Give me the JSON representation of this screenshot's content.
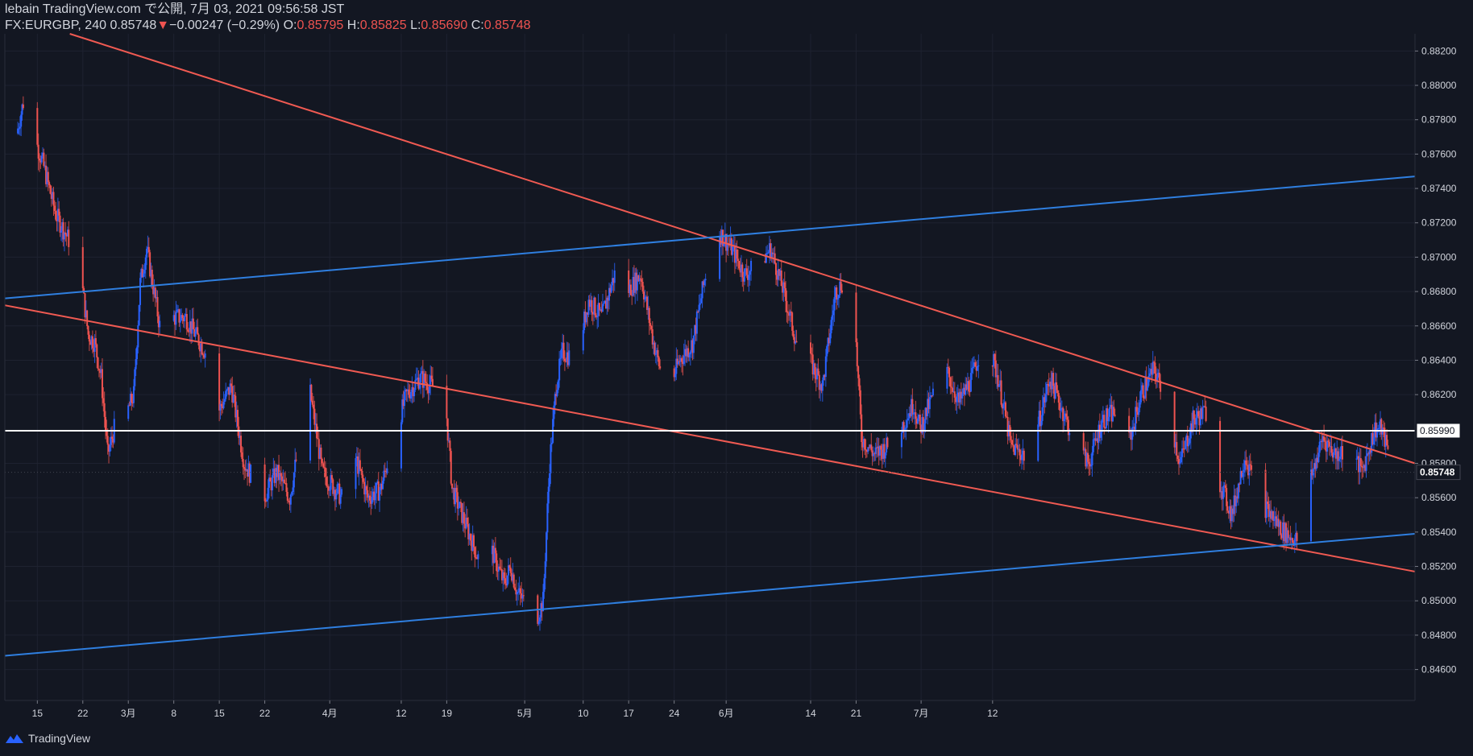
{
  "header": {
    "publisher": "lebain TradingView.com で公開, 7月 03, 2021 09:56:58 JST",
    "symbol": "FX:EURGBP, 240",
    "last": "0.85748",
    "arrow": "▼",
    "change": "−0.00247 (−0.29%)",
    "o_label": "O:",
    "o_value": "0.85795",
    "h_label": "H:",
    "h_value": "0.85825",
    "l_label": "L:",
    "l_value": "0.85690",
    "c_label": "C:",
    "c_value": "0.85748"
  },
  "footer": {
    "brand": "TradingView",
    "logo_icon": "tradingview-logo-icon"
  },
  "colors": {
    "bg": "#131722",
    "up": "#2962ff",
    "down": "#ef5350",
    "trend_red": "#f05a52",
    "trend_blue": "#2f7fe0",
    "grid": "#1e2230",
    "hline": "#ffffff"
  },
  "chart_data": {
    "type": "candlestick",
    "symbol": "FX:EURGBP",
    "timeframe": "240",
    "ylim": [
      0.8442,
      0.883
    ],
    "y_ticks": [
      "0.88200",
      "0.88000",
      "0.87800",
      "0.87600",
      "0.87400",
      "0.87200",
      "0.87000",
      "0.86800",
      "0.86600",
      "0.86400",
      "0.86200",
      "0.85800",
      "0.85600",
      "0.85400",
      "0.85200",
      "0.85000",
      "0.84800",
      "0.84600"
    ],
    "x_ticks": [
      "15",
      "22",
      "3月",
      "8",
      "15",
      "22",
      "4月",
      "12",
      "19",
      "5月",
      "10",
      "17",
      "24",
      "6月",
      "14",
      "21",
      "7月",
      "12"
    ],
    "x_tick_dates": [
      "2021-02-15",
      "2021-02-22",
      "2021-03-01",
      "2021-03-08",
      "2021-03-15",
      "2021-03-22",
      "2021-04-01",
      "2021-04-12",
      "2021-04-19",
      "2021-05-01",
      "2021-05-10",
      "2021-05-17",
      "2021-05-24",
      "2021-06-01",
      "2021-06-14",
      "2021-06-21",
      "2021-07-01",
      "2021-07-12"
    ],
    "price_path": [
      [
        "2021-02-12",
        0.8772
      ],
      [
        "2021-02-13",
        0.879
      ],
      [
        "2021-02-16",
        0.8755
      ],
      [
        "2021-02-18",
        0.8725
      ],
      [
        "2021-02-20",
        0.871
      ],
      [
        "2021-02-22",
        0.8685
      ],
      [
        "2021-02-23",
        0.8655
      ],
      [
        "2021-02-24",
        0.865
      ],
      [
        "2021-02-25",
        0.863
      ],
      [
        "2021-02-26",
        0.8585
      ],
      [
        "2021-02-27",
        0.86
      ],
      [
        "2021-03-01",
        0.861
      ],
      [
        "2021-03-02",
        0.862
      ],
      [
        "2021-03-03",
        0.8685
      ],
      [
        "2021-03-04",
        0.8705
      ],
      [
        "2021-03-06",
        0.866
      ],
      [
        "2021-03-08",
        0.8665
      ],
      [
        "2021-03-10",
        0.8665
      ],
      [
        "2021-03-13",
        0.8645
      ],
      [
        "2021-03-15",
        0.861
      ],
      [
        "2021-03-17",
        0.8625
      ],
      [
        "2021-03-19",
        0.858
      ],
      [
        "2021-03-22",
        0.856
      ],
      [
        "2021-03-24",
        0.8575
      ],
      [
        "2021-03-26",
        0.856
      ],
      [
        "2021-03-29",
        0.8625
      ],
      [
        "2021-03-31",
        0.8575
      ],
      [
        "2021-04-03",
        0.856
      ],
      [
        "2021-04-05",
        0.8585
      ],
      [
        "2021-04-07",
        0.856
      ],
      [
        "2021-04-09",
        0.8565
      ],
      [
        "2021-04-11",
        0.8595
      ],
      [
        "2021-04-13",
        0.862
      ],
      [
        "2021-04-15",
        0.863
      ],
      [
        "2021-04-17",
        0.8625
      ],
      [
        "2021-04-19",
        0.8615
      ],
      [
        "2021-04-20",
        0.8565
      ],
      [
        "2021-04-22",
        0.8545
      ],
      [
        "2021-04-24",
        0.8525
      ],
      [
        "2021-04-26",
        0.853
      ],
      [
        "2021-04-28",
        0.851
      ],
      [
        "2021-04-29",
        0.852
      ],
      [
        "2021-04-30",
        0.8505
      ],
      [
        "2021-05-01",
        0.85
      ],
      [
        "2021-05-03",
        0.849
      ],
      [
        "2021-05-04",
        0.85
      ],
      [
        "2021-05-05",
        0.858
      ],
      [
        "2021-05-06",
        0.8625
      ],
      [
        "2021-05-07",
        0.8645
      ],
      [
        "2021-05-09",
        0.864
      ],
      [
        "2021-05-11",
        0.8675
      ],
      [
        "2021-05-13",
        0.8665
      ],
      [
        "2021-05-15",
        0.869
      ],
      [
        "2021-05-17",
        0.868
      ],
      [
        "2021-05-19",
        0.869
      ],
      [
        "2021-05-21",
        0.865
      ],
      [
        "2021-05-23",
        0.862
      ],
      [
        "2021-05-25",
        0.864
      ],
      [
        "2021-05-27",
        0.865
      ],
      [
        "2021-05-29",
        0.869
      ],
      [
        "2021-05-31",
        0.8715
      ],
      [
        "2021-06-02",
        0.8705
      ],
      [
        "2021-06-04",
        0.869
      ],
      [
        "2021-06-06",
        0.8695
      ],
      [
        "2021-06-08",
        0.8705
      ],
      [
        "2021-06-10",
        0.868
      ],
      [
        "2021-06-12",
        0.865
      ],
      [
        "2021-06-14",
        0.864
      ],
      [
        "2021-06-16",
        0.8625
      ],
      [
        "2021-06-18",
        0.868
      ],
      [
        "2021-06-20",
        0.869
      ],
      [
        "2021-06-21",
        0.866
      ],
      [
        "2021-06-22",
        0.8595
      ],
      [
        "2021-06-24",
        0.8585
      ],
      [
        "2021-06-26",
        0.859
      ],
      [
        "2021-06-28",
        0.86
      ],
      [
        "2021-06-30",
        0.8615
      ],
      [
        "2021-07-01",
        0.86
      ],
      [
        "2021-07-03",
        0.862
      ],
      [
        "2021-07-05",
        0.8635
      ],
      [
        "2021-07-07",
        0.8615
      ],
      [
        "2021-07-09",
        0.863
      ],
      [
        "2021-07-11",
        0.8655
      ],
      [
        "2021-07-13",
        0.863
      ],
      [
        "2021-07-15",
        0.859
      ],
      [
        "2021-07-17",
        0.8585
      ],
      [
        "2021-07-19",
        0.86
      ],
      [
        "2021-07-21",
        0.863
      ],
      [
        "2021-07-23",
        0.861
      ],
      [
        "2021-07-25",
        0.859
      ],
      [
        "2021-07-27",
        0.858
      ],
      [
        "2021-07-29",
        0.8605
      ],
      [
        "2021-07-31",
        0.861
      ],
      [
        "2021-08-02",
        0.859
      ],
      [
        "2021-08-04",
        0.862
      ],
      [
        "2021-08-06",
        0.8635
      ],
      [
        "2021-08-08",
        0.8615
      ],
      [
        "2021-08-10",
        0.858
      ],
      [
        "2021-08-12",
        0.8605
      ],
      [
        "2021-08-14",
        0.861
      ],
      [
        "2021-08-16",
        0.857
      ],
      [
        "2021-08-18",
        0.855
      ],
      [
        "2021-08-20",
        0.8585
      ],
      [
        "2021-08-22",
        0.856
      ],
      [
        "2021-08-24",
        0.855
      ],
      [
        "2021-08-26",
        0.854
      ],
      [
        "2021-08-28",
        0.8535
      ],
      [
        "2021-08-30",
        0.857
      ],
      [
        "2021-09-01",
        0.8595
      ],
      [
        "2021-09-03",
        0.8585
      ],
      [
        "2021-09-05",
        0.859
      ],
      [
        "2021-09-07",
        0.8575
      ],
      [
        "2021-09-09",
        0.86
      ],
      [
        "2021-09-10",
        0.86
      ],
      [
        "2021-09-12",
        0.8575
      ]
    ],
    "horizontal_line": 0.8599,
    "current_price": 0.85748,
    "price_labels": [
      "0.85990",
      "0.85748"
    ],
    "trendlines": [
      {
        "color": "red",
        "points": [
          [
            "2021-02-20",
            0.883
          ],
          [
            "2021-09-15",
            0.858
          ]
        ]
      },
      {
        "color": "red",
        "points": [
          [
            "2021-02-10",
            0.8672
          ],
          [
            "2021-09-15",
            0.8517
          ]
        ]
      },
      {
        "color": "blue",
        "points": [
          [
            "2021-02-10",
            0.8676
          ],
          [
            "2021-09-15",
            0.8747
          ]
        ]
      },
      {
        "color": "blue",
        "points": [
          [
            "2021-02-10",
            0.8468
          ],
          [
            "2021-09-15",
            0.8539
          ]
        ]
      }
    ]
  }
}
